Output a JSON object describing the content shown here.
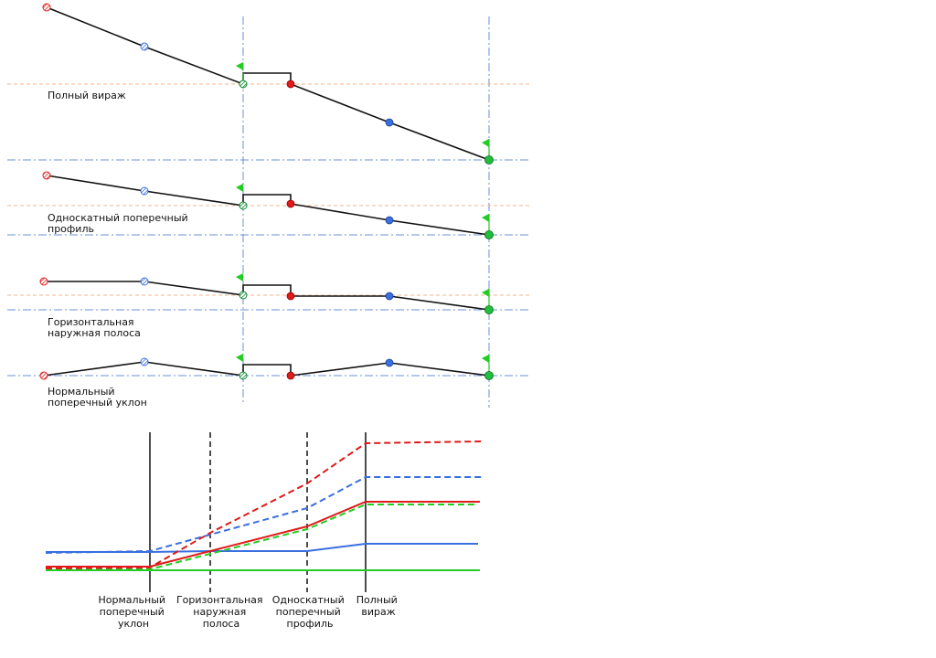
{
  "sections": [
    {
      "key": "full",
      "label_lines": [
        "Полный вираж"
      ]
    },
    {
      "key": "single",
      "label_lines": [
        "Односкатный поперечный",
        "профиль"
      ]
    },
    {
      "key": "horiz",
      "label_lines": [
        "Горизонтальная",
        "наружная полоса"
      ]
    },
    {
      "key": "normal",
      "label_lines": [
        "Нормальный",
        "поперечный уклон"
      ]
    }
  ],
  "stages": [
    {
      "lines": [
        "Нормальный",
        "поперечный",
        "уклон"
      ]
    },
    {
      "lines": [
        "Горизонтальная",
        "наружная",
        "полоса"
      ]
    },
    {
      "lines": [
        "Односкатный",
        "поперечный",
        "профиль"
      ]
    },
    {
      "lines": [
        "Полный",
        "вираж"
      ]
    }
  ],
  "colors": {
    "red": "#e01a1a",
    "blue": "#3a6fe0",
    "green": "#22cc22",
    "dark_green": "#0b8a2e",
    "ref_line": "#6b8fd6",
    "orange_ref": "#f2b48c",
    "axis": "#111111"
  }
}
